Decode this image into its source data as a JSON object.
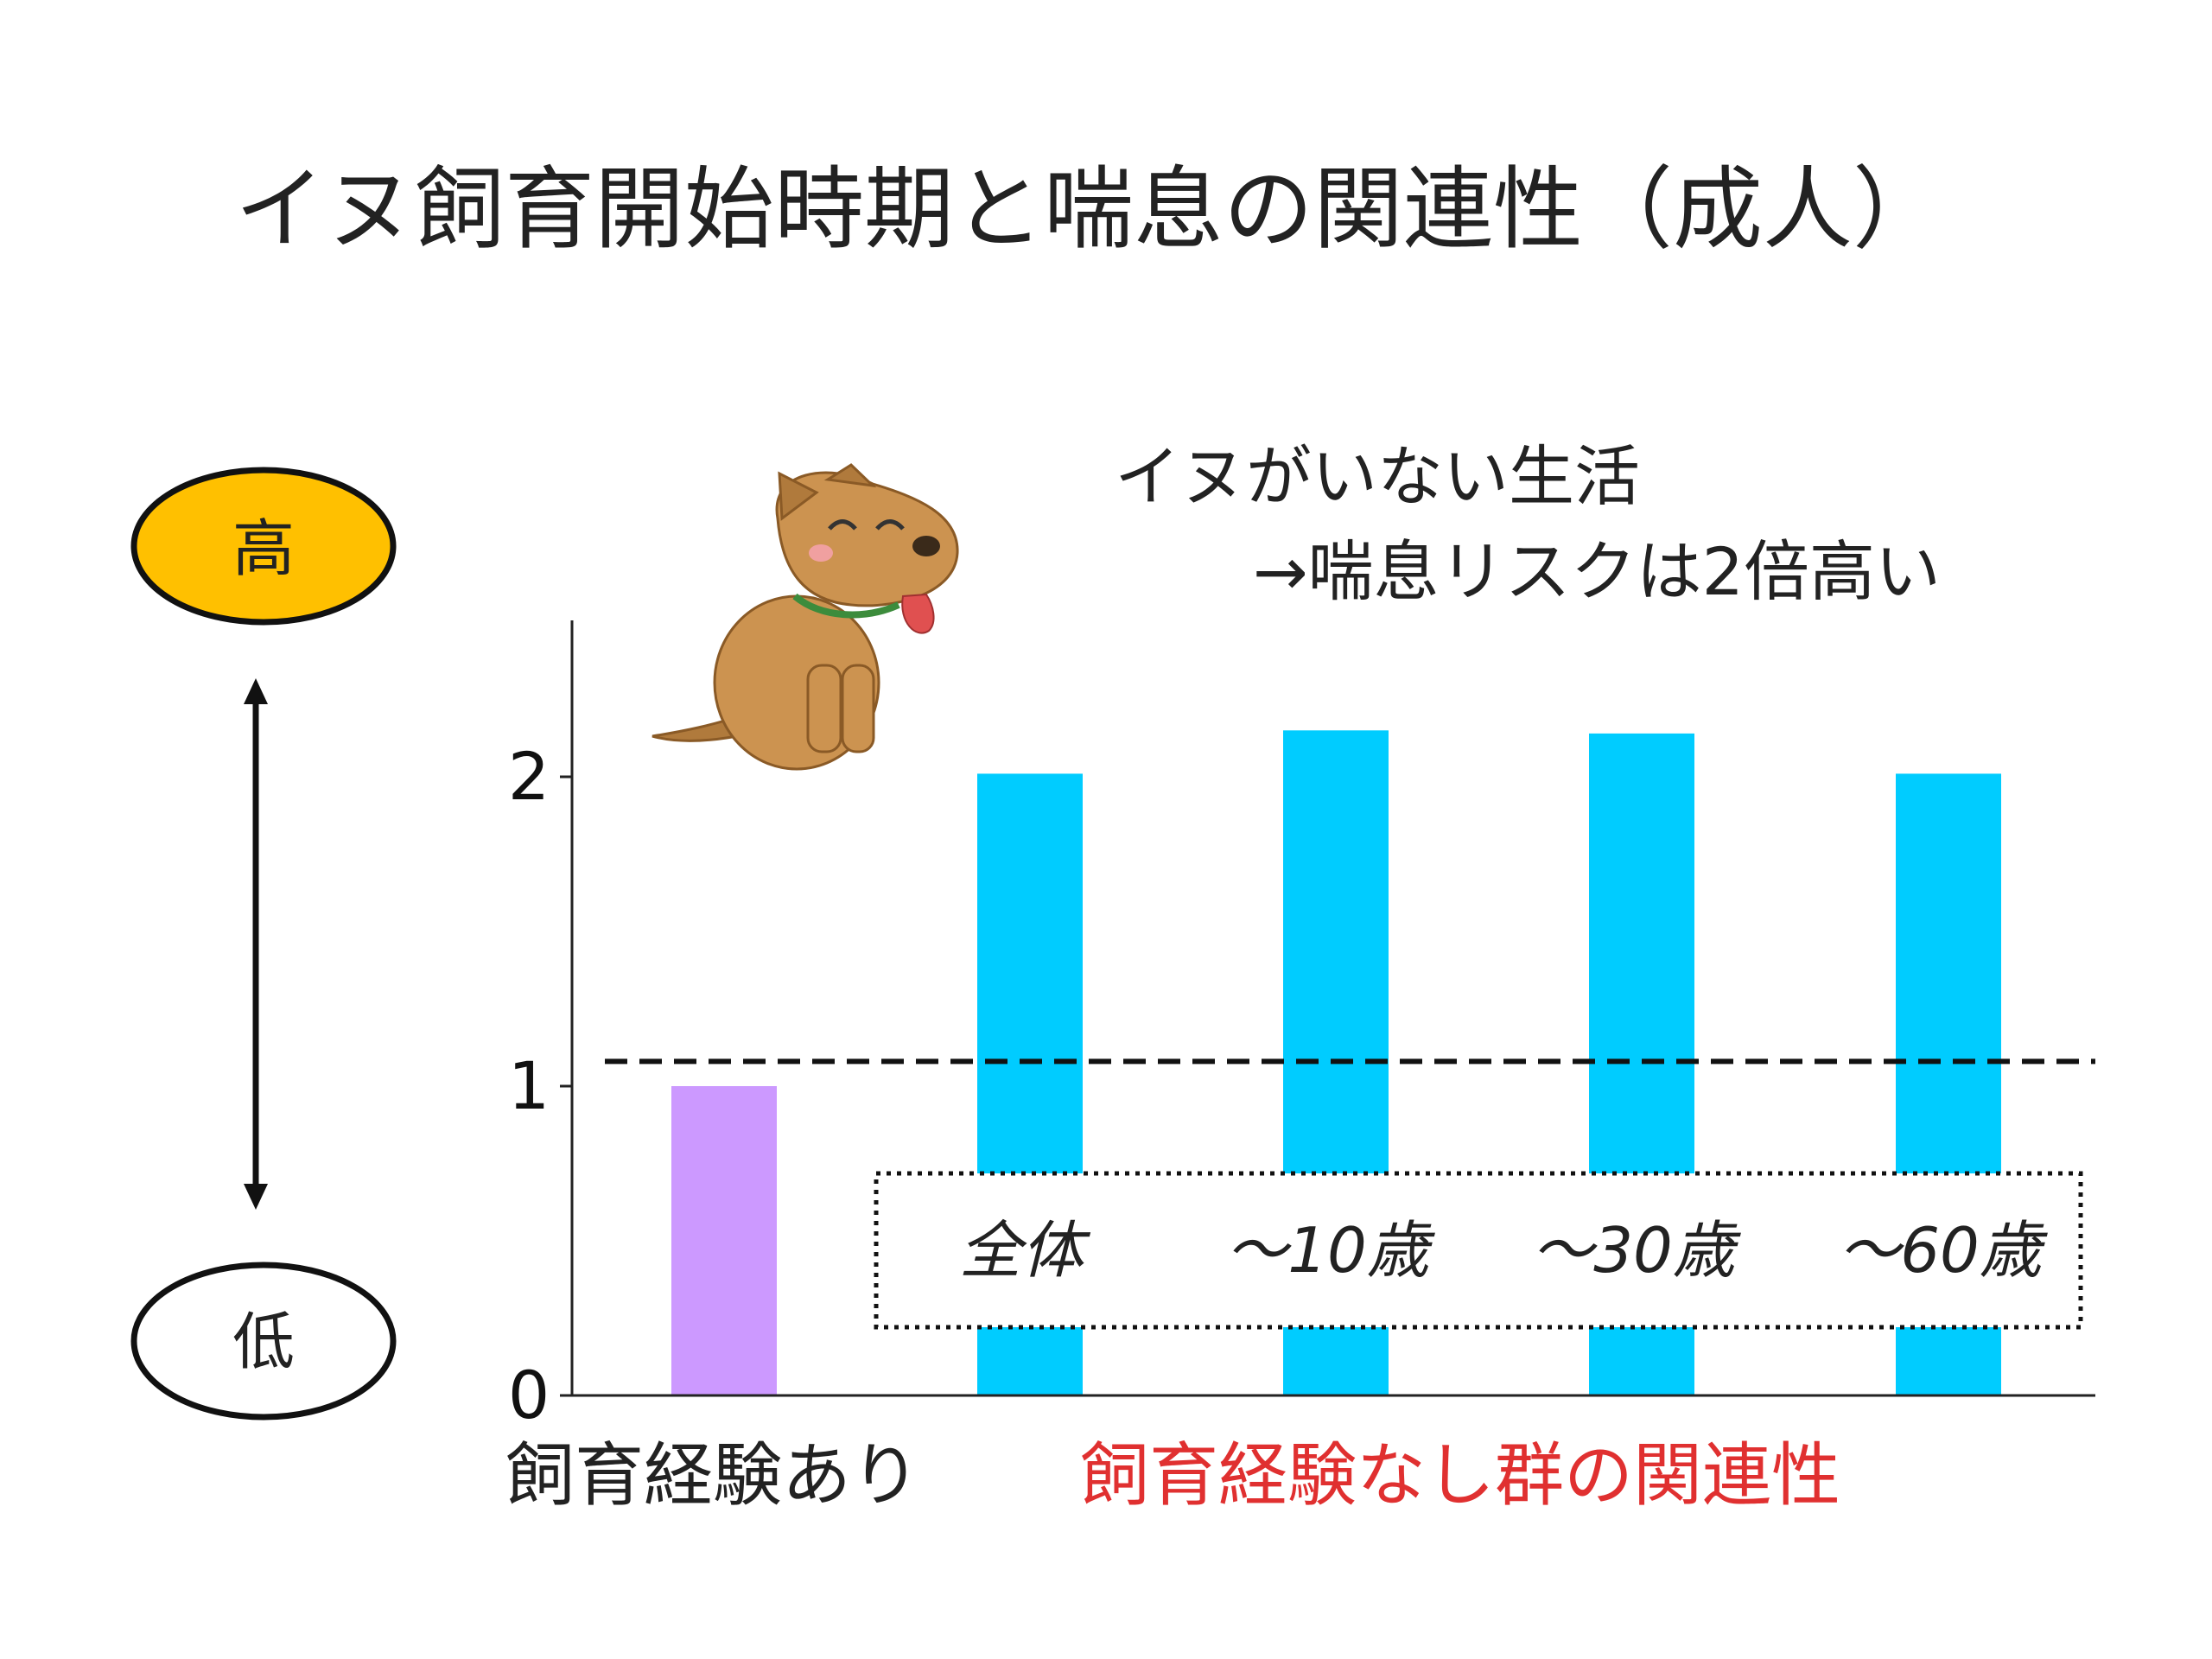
{
  "title": "イヌ飼育開始時期と喘息の関連性（成人）",
  "annotation": {
    "line1": "イヌがいない生活",
    "line2": "→喘息リスクは2倍高い"
  },
  "scale": {
    "high_label": "高",
    "low_label": "低",
    "high_color": "#FFC000"
  },
  "colors": {
    "reference_bar": "#CC99FF",
    "group_bar": "#00CCFF",
    "group_label": "#E03030"
  },
  "chart_data": {
    "type": "bar",
    "categories": [
      "飼育経験あり",
      "全体",
      "〜10歳",
      "〜30歳",
      "〜60歳"
    ],
    "values": [
      1.0,
      2.01,
      2.15,
      2.14,
      2.01
    ],
    "ylim": [
      0,
      2.5
    ],
    "yticks": [
      "0",
      "1",
      "2"
    ],
    "reference_line": 1.08,
    "reference_category_label": "飼育経験あり",
    "group_label": "飼育経験なし群の関連性",
    "group_category_labels": [
      "全体",
      "〜10歳",
      "〜30歳",
      "〜60歳"
    ]
  }
}
